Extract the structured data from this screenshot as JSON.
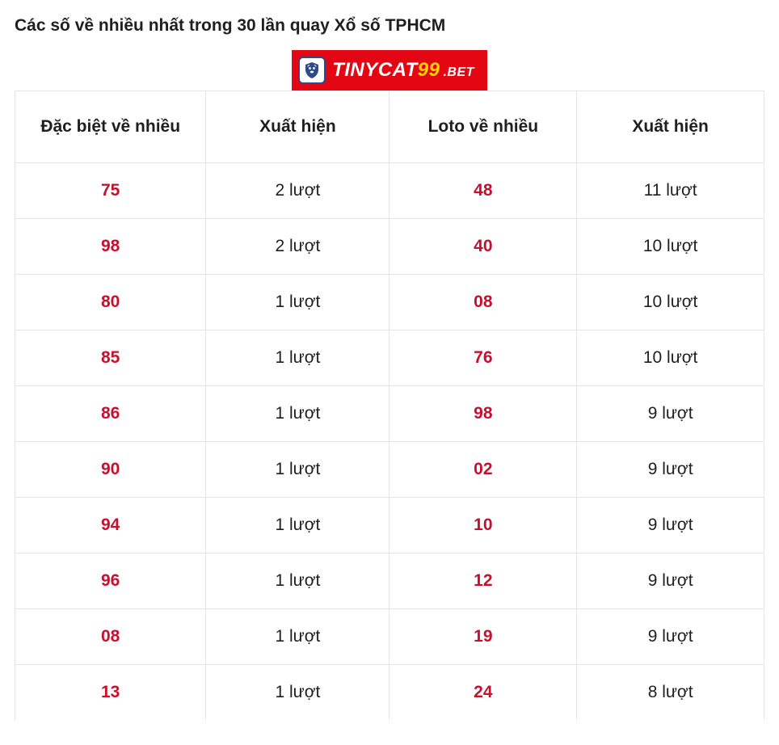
{
  "title_prefix": "Các số về nhiều nhất trong 30 lần quay Xổ số ",
  "title_bold": "TPHCM",
  "banner": {
    "text1": "TINYCAT",
    "text2": "99",
    "text3": ".BET"
  },
  "columns": {
    "col1": "Đặc biệt về nhiều",
    "col2": "Xuất hiện",
    "col3": "Loto về nhiều",
    "col4": "Xuất hiện"
  },
  "rows": [
    {
      "c1": "75",
      "c2": "2 lượt",
      "c3": "48",
      "c4": "11 lượt"
    },
    {
      "c1": "98",
      "c2": "2 lượt",
      "c3": "40",
      "c4": "10 lượt"
    },
    {
      "c1": "80",
      "c2": "1 lượt",
      "c3": "08",
      "c4": "10 lượt"
    },
    {
      "c1": "85",
      "c2": "1 lượt",
      "c3": "76",
      "c4": "10 lượt"
    },
    {
      "c1": "86",
      "c2": "1 lượt",
      "c3": "98",
      "c4": "9 lượt"
    },
    {
      "c1": "90",
      "c2": "1 lượt",
      "c3": "02",
      "c4": "9 lượt"
    },
    {
      "c1": "94",
      "c2": "1 lượt",
      "c3": "10",
      "c4": "9 lượt"
    },
    {
      "c1": "96",
      "c2": "1 lượt",
      "c3": "12",
      "c4": "9 lượt"
    },
    {
      "c1": "08",
      "c2": "1 lượt",
      "c3": "19",
      "c4": "9 lượt"
    },
    {
      "c1": "13",
      "c2": "1 lượt",
      "c3": "24",
      "c4": "8 lượt"
    }
  ],
  "colors": {
    "number": "#c8102e",
    "border": "#e5e5e5",
    "text": "#1f1f1f",
    "banner_bg": "#e30613",
    "banner_accent": "#ffd400"
  }
}
